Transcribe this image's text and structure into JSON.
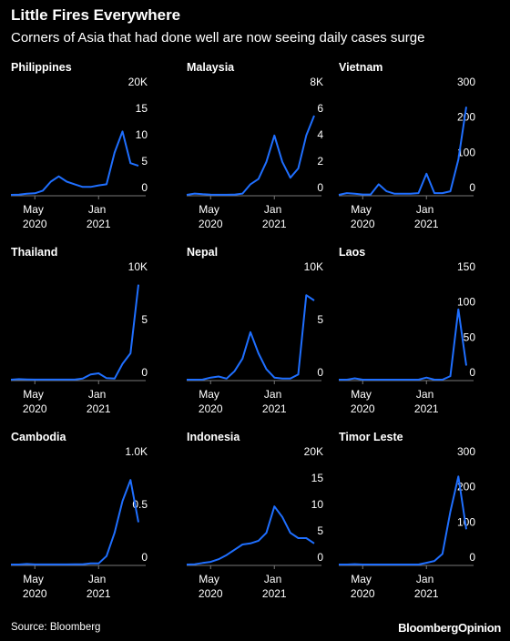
{
  "title": "Little Fires Everywhere",
  "subtitle": "Corners of Asia that had done well are now seeing daily cases surge",
  "source": "Source: Bloomberg",
  "brand": "BloombergOpinion",
  "chart_data": [
    {
      "type": "line",
      "title": "Philippines",
      "color": "#1f6fff",
      "x": [
        "2020-02",
        "2020-03",
        "2020-04",
        "2020-05",
        "2020-06",
        "2020-07",
        "2020-08",
        "2020-09",
        "2020-10",
        "2020-11",
        "2020-12",
        "2021-01",
        "2021-02",
        "2021-03",
        "2021-04",
        "2021-05",
        "2021-06"
      ],
      "values": [
        0,
        50,
        200,
        300,
        800,
        2500,
        3500,
        2500,
        2000,
        1500,
        1500,
        1800,
        2000,
        8000,
        12000,
        6000,
        5500
      ],
      "xlim": [
        "2020-02",
        "2021-06"
      ],
      "xticks": [
        {
          "value": "2020-05",
          "label": "May 2020"
        },
        {
          "value": "2021-01",
          "label": "Jan 2021"
        }
      ],
      "ylim": [
        0,
        20000
      ],
      "yticks": [
        0,
        {
          "value": 5000,
          "label": "5"
        },
        {
          "value": 10000,
          "label": "10"
        },
        {
          "value": 15000,
          "label": "15"
        },
        {
          "value": 20000,
          "label": "20K"
        }
      ]
    },
    {
      "type": "line",
      "title": "Malaysia",
      "color": "#1f6fff",
      "x": [
        "2020-02",
        "2020-03",
        "2020-04",
        "2020-05",
        "2020-06",
        "2020-07",
        "2020-08",
        "2020-09",
        "2020-10",
        "2020-11",
        "2020-12",
        "2021-01",
        "2021-02",
        "2021-03",
        "2021-04",
        "2021-05",
        "2021-06"
      ],
      "values": [
        0,
        100,
        50,
        20,
        10,
        10,
        20,
        100,
        800,
        1200,
        2500,
        4500,
        2500,
        1300,
        2000,
        4500,
        6000
      ],
      "xlim": [
        "2020-02",
        "2021-06"
      ],
      "xticks": [
        {
          "value": "2020-05",
          "label": "May 2020"
        },
        {
          "value": "2021-01",
          "label": "Jan 2021"
        }
      ],
      "ylim": [
        0,
        8000
      ],
      "yticks": [
        0,
        {
          "value": 2000,
          "label": "2"
        },
        {
          "value": 4000,
          "label": "4"
        },
        {
          "value": 6000,
          "label": "6"
        },
        {
          "value": 8000,
          "label": "8K"
        }
      ]
    },
    {
      "type": "line",
      "title": "Vietnam",
      "color": "#1f6fff",
      "x": [
        "2020-02",
        "2020-03",
        "2020-04",
        "2020-05",
        "2020-06",
        "2020-07",
        "2020-08",
        "2020-09",
        "2020-10",
        "2020-11",
        "2020-12",
        "2021-01",
        "2021-02",
        "2021-03",
        "2021-04",
        "2021-05",
        "2021-06"
      ],
      "values": [
        0,
        5,
        3,
        1,
        1,
        30,
        10,
        3,
        3,
        3,
        5,
        60,
        5,
        5,
        10,
        100,
        250
      ],
      "xlim": [
        "2020-02",
        "2021-06"
      ],
      "xticks": [
        {
          "value": "2020-05",
          "label": "May 2020"
        },
        {
          "value": "2021-01",
          "label": "Jan 2021"
        }
      ],
      "ylim": [
        0,
        300
      ],
      "yticks": [
        0,
        100,
        200,
        300
      ]
    },
    {
      "type": "line",
      "title": "Thailand",
      "color": "#1f6fff",
      "x": [
        "2020-02",
        "2020-03",
        "2020-04",
        "2020-05",
        "2020-06",
        "2020-07",
        "2020-08",
        "2020-09",
        "2020-10",
        "2020-11",
        "2020-12",
        "2021-01",
        "2021-02",
        "2021-03",
        "2021-04",
        "2021-05",
        "2021-06"
      ],
      "values": [
        0,
        50,
        30,
        5,
        5,
        5,
        5,
        5,
        5,
        100,
        500,
        600,
        150,
        100,
        1500,
        2500,
        9000
      ],
      "xlim": [
        "2020-02",
        "2021-06"
      ],
      "xticks": [
        {
          "value": "2020-05",
          "label": "May 2020"
        },
        {
          "value": "2021-01",
          "label": "Jan 2021"
        }
      ],
      "ylim": [
        0,
        10000
      ],
      "yticks": [
        0,
        {
          "value": 5000,
          "label": "5"
        },
        {
          "value": 10000,
          "label": "10K"
        }
      ]
    },
    {
      "type": "line",
      "title": "Nepal",
      "color": "#1f6fff",
      "x": [
        "2020-02",
        "2020-03",
        "2020-04",
        "2020-05",
        "2020-06",
        "2020-07",
        "2020-08",
        "2020-09",
        "2020-10",
        "2020-11",
        "2020-12",
        "2021-01",
        "2021-02",
        "2021-03",
        "2021-04",
        "2021-05",
        "2021-06"
      ],
      "values": [
        0,
        0,
        5,
        200,
        300,
        100,
        800,
        2000,
        4500,
        2500,
        1000,
        200,
        100,
        100,
        500,
        8000,
        7500
      ],
      "xlim": [
        "2020-02",
        "2021-06"
      ],
      "xticks": [
        {
          "value": "2020-05",
          "label": "May 2020"
        },
        {
          "value": "2021-01",
          "label": "Jan 2021"
        }
      ],
      "ylim": [
        0,
        10000
      ],
      "yticks": [
        0,
        {
          "value": 5000,
          "label": "5"
        },
        {
          "value": 10000,
          "label": "10K"
        }
      ]
    },
    {
      "type": "line",
      "title": "Laos",
      "color": "#1f6fff",
      "x": [
        "2020-02",
        "2020-03",
        "2020-04",
        "2020-05",
        "2020-06",
        "2020-07",
        "2020-08",
        "2020-09",
        "2020-10",
        "2020-11",
        "2020-12",
        "2021-01",
        "2021-02",
        "2021-03",
        "2021-04",
        "2021-05",
        "2021-06"
      ],
      "values": [
        0,
        0,
        2,
        0,
        0,
        0,
        0,
        0,
        0,
        0,
        0,
        3,
        0,
        0,
        5,
        100,
        20
      ],
      "xlim": [
        "2020-02",
        "2021-06"
      ],
      "xticks": [
        {
          "value": "2020-05",
          "label": "May 2020"
        },
        {
          "value": "2021-01",
          "label": "Jan 2021"
        }
      ],
      "ylim": [
        0,
        150
      ],
      "yticks": [
        0,
        50,
        100,
        150
      ]
    },
    {
      "type": "line",
      "title": "Cambodia",
      "color": "#1f6fff",
      "x": [
        "2020-02",
        "2020-03",
        "2020-04",
        "2020-05",
        "2020-06",
        "2020-07",
        "2020-08",
        "2020-09",
        "2020-10",
        "2020-11",
        "2020-12",
        "2021-01",
        "2021-02",
        "2021-03",
        "2021-04",
        "2021-05",
        "2021-06"
      ],
      "values": [
        0,
        0,
        5,
        1,
        1,
        1,
        1,
        1,
        2,
        2,
        10,
        10,
        80,
        300,
        600,
        800,
        400
      ],
      "xlim": [
        "2020-02",
        "2021-06"
      ],
      "xticks": [
        {
          "value": "2020-05",
          "label": "May 2020"
        },
        {
          "value": "2021-01",
          "label": "Jan 2021"
        }
      ],
      "ylim": [
        0,
        1000
      ],
      "yticks": [
        0,
        {
          "value": 500,
          "label": "0.5"
        },
        {
          "value": 1000,
          "label": "1.0K"
        }
      ]
    },
    {
      "type": "line",
      "title": "Indonesia",
      "color": "#1f6fff",
      "x": [
        "2020-02",
        "2020-03",
        "2020-04",
        "2020-05",
        "2020-06",
        "2020-07",
        "2020-08",
        "2020-09",
        "2020-10",
        "2020-11",
        "2020-12",
        "2021-01",
        "2021-02",
        "2021-03",
        "2021-04",
        "2021-05",
        "2021-06"
      ],
      "values": [
        0,
        50,
        300,
        500,
        1000,
        1800,
        2800,
        3800,
        4000,
        4500,
        6000,
        11000,
        9000,
        6000,
        5000,
        5000,
        4000
      ],
      "xlim": [
        "2020-02",
        "2021-06"
      ],
      "xticks": [
        {
          "value": "2020-05",
          "label": "May 2020"
        },
        {
          "value": "2021-01",
          "label": "Jan 2021"
        }
      ],
      "ylim": [
        0,
        20000
      ],
      "yticks": [
        0,
        {
          "value": 5000,
          "label": "5"
        },
        {
          "value": 10000,
          "label": "10"
        },
        {
          "value": 15000,
          "label": "15"
        },
        {
          "value": 20000,
          "label": "20K"
        }
      ]
    },
    {
      "type": "line",
      "title": "Timor Leste",
      "color": "#1f6fff",
      "x": [
        "2020-02",
        "2020-03",
        "2020-04",
        "2020-05",
        "2020-06",
        "2020-07",
        "2020-08",
        "2020-09",
        "2020-10",
        "2020-11",
        "2020-12",
        "2021-01",
        "2021-02",
        "2021-03",
        "2021-04",
        "2021-05",
        "2021-06"
      ],
      "values": [
        0,
        0,
        1,
        0,
        0,
        0,
        0,
        0,
        0,
        0,
        0,
        5,
        10,
        30,
        150,
        250,
        100
      ],
      "xlim": [
        "2020-02",
        "2021-06"
      ],
      "xticks": [
        {
          "value": "2020-05",
          "label": "May 2020"
        },
        {
          "value": "2021-01",
          "label": "Jan 2021"
        }
      ],
      "ylim": [
        0,
        300
      ],
      "yticks": [
        0,
        100,
        200,
        300
      ]
    }
  ]
}
